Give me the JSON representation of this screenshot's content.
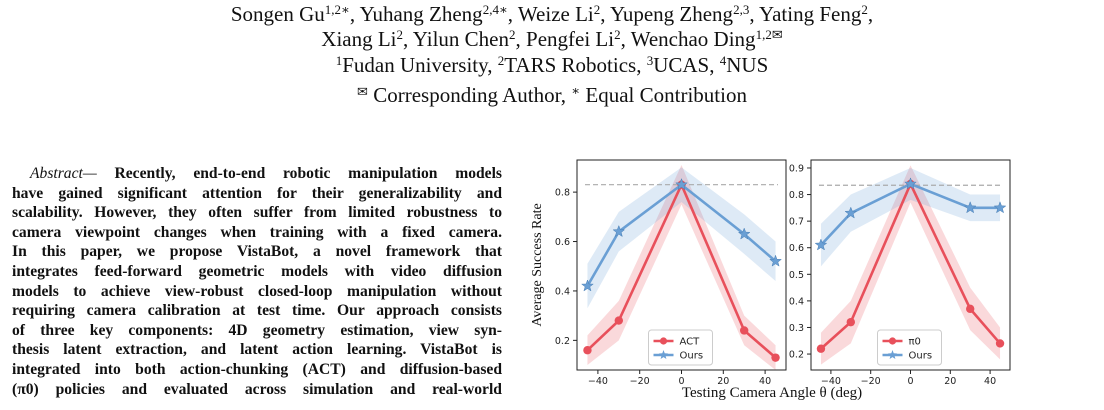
{
  "header": {
    "line1": [
      {
        "name": "Songen Gu",
        "sup": "1,2∗",
        "sep": ", "
      },
      {
        "name": "Yuhang Zheng",
        "sup": "2,4∗",
        "sep": ", "
      },
      {
        "name": "Weize Li",
        "sup": "2",
        "sep": ", "
      },
      {
        "name": "Yupeng Zheng",
        "sup": "2,3",
        "sep": ", "
      },
      {
        "name": "Yating Feng",
        "sup": "2",
        "sep": ","
      }
    ],
    "line2": [
      {
        "name": "Xiang Li",
        "sup": "2",
        "sep": ", "
      },
      {
        "name": "Yilun Chen",
        "sup": "2",
        "sep": ", "
      },
      {
        "name": "Pengfei Li",
        "sup": "2",
        "sep": ", "
      },
      {
        "name": "Wenchao Ding",
        "sup": "1,2✉",
        "sep": ""
      }
    ],
    "affiliations": [
      {
        "sup": "1",
        "text": "Fudan University, "
      },
      {
        "sup": "2",
        "text": "TARS Robotics, "
      },
      {
        "sup": "3",
        "text": "UCAS, "
      },
      {
        "sup": "4",
        "text": "NUS"
      }
    ],
    "corresponding": {
      "mark": "✉",
      "text1": " Corresponding Author, ",
      "star": "∗",
      "text2": " Equal Contribution"
    }
  },
  "abstract": {
    "lead": "Abstract—",
    "lines": [
      "Recently, end-to-end robotic manipulation models",
      "have gained significant attention for their generalizability and",
      "scalability. However, they often suffer from limited robustness to",
      "camera viewpoint changes when training with a fixed camera.",
      "In this paper, we propose VistaBot, a novel framework that",
      "integrates feed-forward geometric models with video diffusion",
      "models to achieve view-robust closed-loop manipulation without",
      "requiring camera calibration at test time. Our approach consists",
      "of three key components: 4D geometry estimation, view syn-",
      "thesis latent extraction, and latent action learning. VistaBot is",
      "integrated into both action-chunking (ACT) and diffusion-based",
      "(π0) policies and evaluated across simulation and real-world"
    ]
  },
  "figure": {
    "xlabel": "Testing Camera Angle θ (deg)",
    "colors": {
      "baseline": "#e8505b",
      "ours": "#6a9fd4",
      "ref": "#aaaaaa"
    },
    "chart_data": [
      {
        "type": "line",
        "xlabel": "Testing Camera Angle θ (deg)",
        "ylabel": "Average Success Rate",
        "xlim": [
          -50,
          50
        ],
        "ylim": [
          0.08,
          0.93
        ],
        "xticks": [
          -40,
          -20,
          0,
          20,
          40
        ],
        "yticks": [
          0.2,
          0.4,
          0.6,
          0.8
        ],
        "reference_line": 0.83,
        "legend": "bottom-center",
        "x": [
          -45,
          -30,
          0,
          30,
          45
        ],
        "series": [
          {
            "name": "ACT",
            "values": [
              0.16,
              0.28,
              0.83,
              0.24,
              0.13
            ],
            "band": [
              0.06,
              0.08,
              0.08,
              0.06,
              0.05
            ]
          },
          {
            "name": "Ours",
            "values": [
              0.42,
              0.64,
              0.83,
              0.63,
              0.52
            ],
            "band": [
              0.09,
              0.08,
              0.07,
              0.08,
              0.08
            ]
          }
        ]
      },
      {
        "type": "line",
        "xlabel": "Testing Camera Angle θ (deg)",
        "ylabel": "",
        "xlim": [
          -50,
          50
        ],
        "ylim": [
          0.14,
          0.93
        ],
        "xticks": [
          -40,
          -20,
          0,
          20,
          40
        ],
        "yticks": [
          0.2,
          0.3,
          0.4,
          0.5,
          0.6,
          0.7,
          0.8,
          0.9
        ],
        "reference_line": 0.835,
        "legend": "bottom-center",
        "x": [
          -45,
          -30,
          0,
          30,
          45
        ],
        "series": [
          {
            "name": "π0",
            "values": [
              0.22,
              0.32,
              0.84,
              0.37,
              0.24
            ],
            "band": [
              0.06,
              0.08,
              0.07,
              0.08,
              0.06
            ]
          },
          {
            "name": "Ours",
            "values": [
              0.61,
              0.73,
              0.84,
              0.75,
              0.75
            ],
            "band": [
              0.08,
              0.07,
              0.06,
              0.05,
              0.05
            ]
          }
        ]
      }
    ]
  }
}
